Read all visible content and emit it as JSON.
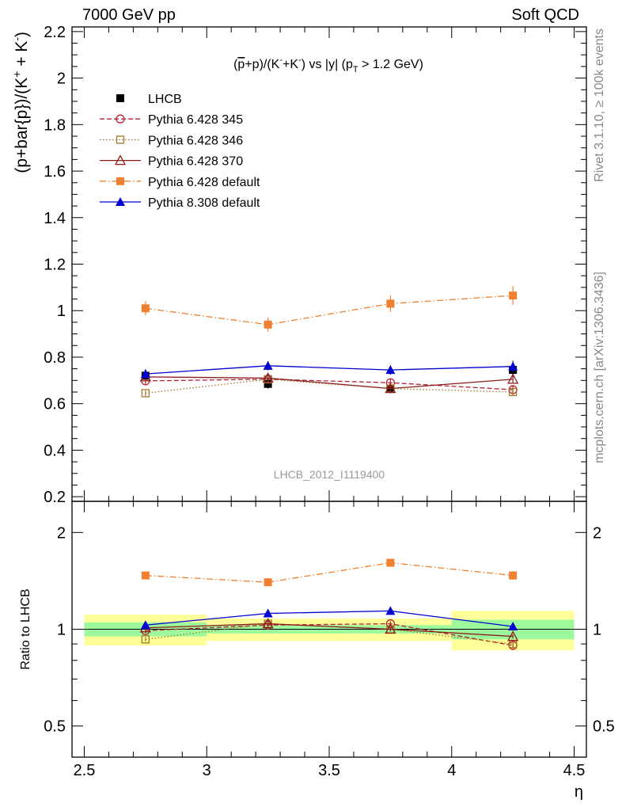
{
  "header": {
    "left": "7000 GeV pp",
    "right": "Soft QCD"
  },
  "side_labels": {
    "rivet": "Rivet 3.1.10, ≥ 100k events",
    "source": "mcplots.cern.ch [arXiv:1306.3436]"
  },
  "chart_data": [
    {
      "type": "line",
      "title": "(p̅+p)/(K⁻+K⁻) vs |y| (p_T > 1.2 GeV)",
      "title_parts": {
        "pre": "(",
        "pbar": "p",
        "mid": "+p)/(K",
        "sup1": "-",
        "mid2": "+K",
        "sup2": "-",
        "end": ") vs |y| (p",
        "sub": "T",
        "tail": " > 1.2 GeV)"
      },
      "ylabel": "(p+bar{p})/(K⁺ + K⁻)",
      "ylabel_parts": {
        "main": "(p+bar{p})/(K",
        "sup1": "+",
        "mid": " + K",
        "sup2": "-",
        "end": ")"
      },
      "watermark": "LHCB_2012_I1119400",
      "ylim": [
        0.18,
        2.22
      ],
      "xlim": [
        2.45,
        4.55
      ],
      "yticks": [
        0.2,
        0.4,
        0.6,
        0.8,
        1,
        1.2,
        1.4,
        1.6,
        1.8,
        2,
        2.2
      ],
      "ytick_labels": [
        "0.2",
        "0.4",
        "0.6",
        "0.8",
        "1",
        "1.2",
        "1.4",
        "1.6",
        "1.8",
        "2",
        "2.2"
      ],
      "x": [
        2.75,
        3.25,
        3.75,
        4.25
      ],
      "bin_edges": [
        2.5,
        3.0,
        3.5,
        4.0,
        4.5
      ],
      "series": [
        {
          "name": "LHCB",
          "style": "data",
          "color": "#000000",
          "marker": "square-filled",
          "values": [
            0.72,
            0.685,
            0.665,
            0.745
          ],
          "errors": [
            0.02,
            0.02,
            0.02,
            0.025
          ]
        },
        {
          "name": "Pythia 6.428 345",
          "style": "dashed",
          "color": "#b22234",
          "marker": "circle-open",
          "values": [
            0.698,
            0.705,
            0.69,
            0.66
          ],
          "errors": [
            0.018,
            0.018,
            0.018,
            0.02
          ]
        },
        {
          "name": "Pythia 6.428 346",
          "style": "dotted",
          "color": "#a07828",
          "marker": "square-open",
          "values": [
            0.645,
            0.705,
            0.665,
            0.65
          ],
          "errors": [
            0.012,
            0.012,
            0.012,
            0.015
          ]
        },
        {
          "name": "Pythia 6.428 370",
          "style": "solid",
          "color": "#8b1a1a",
          "marker": "triangle-open",
          "values": [
            0.715,
            0.71,
            0.665,
            0.705
          ],
          "errors": [
            0.012,
            0.012,
            0.012,
            0.015
          ]
        },
        {
          "name": "Pythia 6.428 default",
          "style": "dashdot",
          "color": "#f08030",
          "marker": "square-filled",
          "values": [
            1.01,
            0.94,
            1.03,
            1.065
          ],
          "errors": [
            0.03,
            0.03,
            0.035,
            0.04
          ]
        },
        {
          "name": "Pythia 8.308 default",
          "style": "solid",
          "color": "#0000d0",
          "marker": "triangle-filled",
          "values": [
            0.728,
            0.763,
            0.745,
            0.76
          ],
          "errors": [
            0.02,
            0.02,
            0.02,
            0.025
          ]
        }
      ]
    },
    {
      "type": "line",
      "ylabel": "Ratio to LHCB",
      "xlabel": "η",
      "log_y": true,
      "ylim": [
        0.4,
        2.5
      ],
      "xlim": [
        2.45,
        4.55
      ],
      "yticks": [
        0.5,
        1,
        2
      ],
      "ytick_labels": [
        "0.5",
        "1",
        "2"
      ],
      "xticks": [
        2.5,
        3,
        3.5,
        4,
        4.5
      ],
      "xtick_labels": [
        "2.5",
        "3",
        "3.5",
        "4",
        "4.5"
      ],
      "x": [
        2.75,
        3.25,
        3.75,
        4.25
      ],
      "bands": {
        "bin_edges": [
          2.5,
          3.0,
          3.5,
          4.0,
          4.5
        ],
        "stat": [
          [
            0.95,
            1.05
          ],
          [
            0.97,
            1.03
          ],
          [
            0.97,
            1.03
          ],
          [
            0.93,
            1.07
          ]
        ],
        "total": [
          [
            0.89,
            1.11
          ],
          [
            0.92,
            1.08
          ],
          [
            0.92,
            1.08
          ],
          [
            0.86,
            1.14
          ]
        ],
        "stat_color": "#9cfa9c",
        "total_color": "#ffff99"
      },
      "series": [
        {
          "name": "Pythia 6.428 345",
          "values": [
            0.99,
            1.03,
            1.04,
            0.89
          ],
          "errors": [
            0.02,
            0.02,
            0.02,
            0.02
          ]
        },
        {
          "name": "Pythia 6.428 346",
          "values": [
            0.93,
            1.04,
            1.0,
            0.9
          ],
          "errors": [
            0.015,
            0.015,
            0.015,
            0.015
          ]
        },
        {
          "name": "Pythia 6.428 370",
          "values": [
            1.01,
            1.04,
            1.0,
            0.95
          ],
          "errors": [
            0.015,
            0.015,
            0.015,
            0.015
          ]
        },
        {
          "name": "Pythia 6.428 default",
          "values": [
            1.47,
            1.4,
            1.61,
            1.47
          ],
          "errors": [
            0.04,
            0.04,
            0.045,
            0.045
          ]
        },
        {
          "name": "Pythia 8.308 default",
          "values": [
            1.03,
            1.12,
            1.14,
            1.02
          ],
          "errors": [
            0.02,
            0.02,
            0.02,
            0.02
          ]
        }
      ]
    }
  ]
}
